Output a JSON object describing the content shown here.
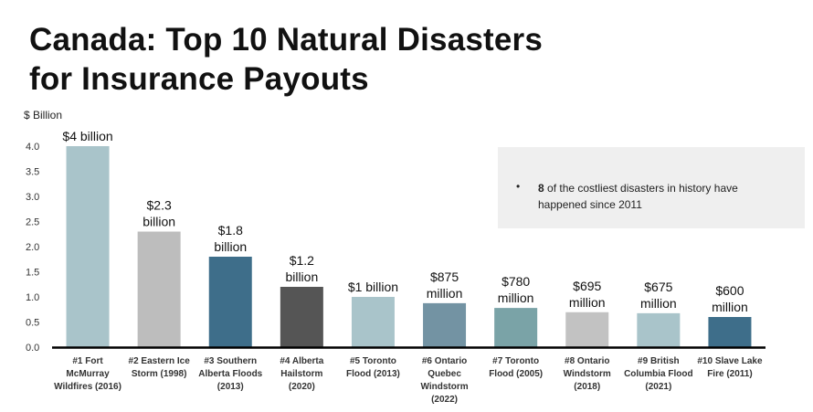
{
  "title": {
    "line1": "Canada: Top 10 Natural Disasters",
    "line2": "for Insurance Payouts"
  },
  "note": {
    "bullet": "•",
    "bold": "8",
    "text": " of the costliest disasters in history have happened since 2011"
  },
  "chart_data": {
    "type": "bar",
    "title": "Canada: Top 10 Natural Disasters for Insurance Payouts",
    "ylabel": "$ Billion",
    "xlabel": "",
    "ylim": [
      0,
      4.0
    ],
    "yticks": [
      "0.0",
      "0.5",
      "1.0",
      "1.5",
      "2.0",
      "2.5",
      "3.0",
      "3.5",
      "4.0"
    ],
    "grid": false,
    "categories": [
      [
        "#1 Fort",
        "McMurray",
        "Wildfires (2016)"
      ],
      [
        "#2 Eastern Ice",
        "Storm (1998)"
      ],
      [
        "#3 Southern",
        "Alberta Floods",
        "(2013)"
      ],
      [
        "#4 Alberta",
        "Hailstorm",
        "(2020)"
      ],
      [
        "#5 Toronto",
        "Flood (2013)"
      ],
      [
        "#6 Ontario",
        "Quebec",
        "Windstorm",
        "(2022)"
      ],
      [
        "#7 Toronto",
        "Flood (2005)"
      ],
      [
        "#8 Ontario",
        "Windstorm",
        "(2018)"
      ],
      [
        "#9 British",
        "Columbia Flood",
        "(2021)"
      ],
      [
        "#10 Slave Lake",
        "Fire (2011)"
      ]
    ],
    "values": [
      4.0,
      2.3,
      1.8,
      1.2,
      1.0,
      0.875,
      0.78,
      0.695,
      0.675,
      0.6
    ],
    "data_labels": [
      [
        "$4 billion"
      ],
      [
        "$2.3",
        "billion"
      ],
      [
        "$1.8",
        "billion"
      ],
      [
        "$1.2",
        "billion"
      ],
      [
        "$1 billion"
      ],
      [
        "$875",
        "million"
      ],
      [
        "$780",
        "million"
      ],
      [
        "$695",
        "million"
      ],
      [
        "$675",
        "million"
      ],
      [
        "$600",
        "million"
      ]
    ],
    "colors": [
      "#a9c4ca",
      "#bdbdbd",
      "#3e6e8a",
      "#555555",
      "#a9c4ca",
      "#7393a3",
      "#7aa3a7",
      "#c2c2c2",
      "#a9c4ca",
      "#3e6e8a"
    ]
  }
}
